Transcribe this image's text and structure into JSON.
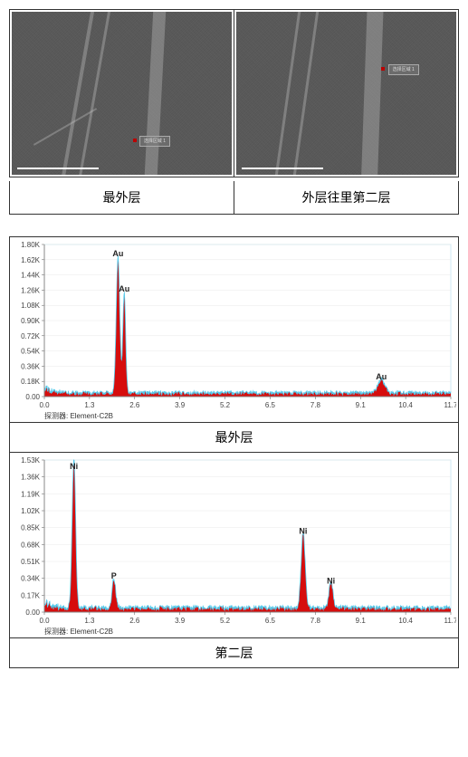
{
  "sem": {
    "left_caption": "最外层",
    "right_caption": "外层往里第二层",
    "marker_label": "选择区域 1",
    "scale_label": "10 μm",
    "bg_color": "#5a5a5a",
    "line_color": "rgba(200,200,200,0.35)"
  },
  "spectrum1": {
    "caption": "最外层",
    "detector_label": "探测器: Element-C2B",
    "ylim": [
      0,
      1.8
    ],
    "ytick_labels": [
      "0.00",
      "0.18K",
      "0.36K",
      "0.54K",
      "0.72K",
      "0.90K",
      "1.08K",
      "1.26K",
      "1.44K",
      "1.62K",
      "1.80K"
    ],
    "xlim": [
      0.0,
      11.7
    ],
    "xtick_labels": [
      "0.0",
      "1.3",
      "2.6",
      "3.9",
      "5.2",
      "6.5",
      "7.8",
      "9.1",
      "10.4",
      "11.7"
    ],
    "fill_color": "#d40000",
    "outline_color": "#53c9ea",
    "label_fontsize": 9,
    "axis_fontsize": 8,
    "peaks": [
      {
        "x": 2.12,
        "height": 1.62,
        "width": 0.1,
        "label": "Au"
      },
      {
        "x": 2.3,
        "height": 1.2,
        "width": 0.08,
        "label": "Au"
      },
      {
        "x": 9.7,
        "height": 0.16,
        "width": 0.2,
        "label": "Au"
      }
    ],
    "baseline_height": 0.04
  },
  "spectrum2": {
    "caption": "第二层",
    "detector_label": "探测器: Element-C2B",
    "ylim": [
      0,
      1.53
    ],
    "ytick_labels": [
      "0.00",
      "0.17K",
      "0.34K",
      "0.51K",
      "0.68K",
      "0.85K",
      "1.02K",
      "1.19K",
      "1.36K",
      "1.53K"
    ],
    "xlim": [
      0.0,
      11.7
    ],
    "xtick_labels": [
      "0.0",
      "1.3",
      "2.6",
      "3.9",
      "5.2",
      "6.5",
      "7.8",
      "9.1",
      "10.4",
      "11.7"
    ],
    "fill_color": "#d40000",
    "outline_color": "#53c9ea",
    "label_fontsize": 9,
    "axis_fontsize": 8,
    "peaks": [
      {
        "x": 0.85,
        "height": 1.5,
        "width": 0.1,
        "label": "Ni"
      },
      {
        "x": 2.0,
        "height": 0.3,
        "width": 0.1,
        "label": "P"
      },
      {
        "x": 7.45,
        "height": 0.75,
        "width": 0.12,
        "label": "Ni"
      },
      {
        "x": 8.25,
        "height": 0.25,
        "width": 0.12,
        "label": "Ni"
      }
    ],
    "baseline_height": 0.04
  }
}
